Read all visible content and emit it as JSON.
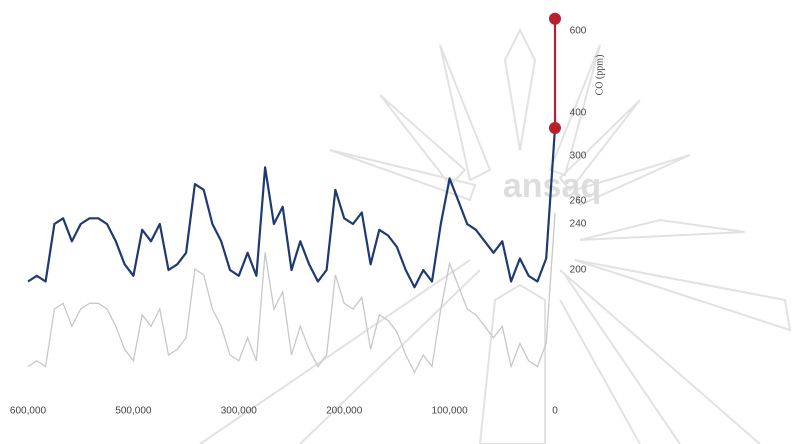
{
  "chart_data": {
    "type": "line",
    "y_label": "CO (ppm)",
    "watermark": "ansaq",
    "x": [
      600000,
      590000,
      580000,
      570000,
      560000,
      550000,
      540000,
      530000,
      520000,
      510000,
      500000,
      490000,
      480000,
      470000,
      460000,
      450000,
      440000,
      430000,
      420000,
      410000,
      400000,
      390000,
      380000,
      370000,
      360000,
      350000,
      340000,
      330000,
      320000,
      310000,
      300000,
      290000,
      280000,
      270000,
      260000,
      250000,
      240000,
      230000,
      220000,
      210000,
      200000,
      190000,
      180000,
      170000,
      160000,
      150000,
      140000,
      130000,
      120000,
      110000,
      100000,
      90000,
      80000,
      70000,
      60000,
      50000,
      40000,
      30000,
      20000,
      10000,
      0
    ],
    "series": [
      {
        "color": "#1f3a73",
        "values": [
          190,
          195,
          190,
          240,
          245,
          225,
          240,
          245,
          245,
          240,
          225,
          205,
          195,
          235,
          225,
          240,
          200,
          205,
          215,
          275,
          270,
          240,
          225,
          200,
          195,
          215,
          195,
          290,
          240,
          255,
          200,
          225,
          205,
          190,
          200,
          270,
          245,
          240,
          250,
          205,
          235,
          230,
          220,
          200,
          185,
          200,
          190,
          240,
          280,
          260,
          240,
          235,
          225,
          215,
          225,
          190,
          210,
          195,
          190,
          210,
          365
        ]
      },
      {
        "color": "#b8202e",
        "x": [
          0,
          0
        ],
        "values": [
          365,
          630
        ]
      }
    ],
    "xlim": [
      600000,
      0
    ],
    "xticks": [
      {
        "value": 600000,
        "label": "600,000"
      },
      {
        "value": 500000,
        "label": "500,000"
      },
      {
        "value": 300000,
        "label": "300,000"
      },
      {
        "value": 200000,
        "label": "200,000"
      },
      {
        "value": 100000,
        "label": "100,000"
      },
      0
    ],
    "yticks": [
      200,
      240,
      260,
      300,
      400,
      600
    ]
  }
}
